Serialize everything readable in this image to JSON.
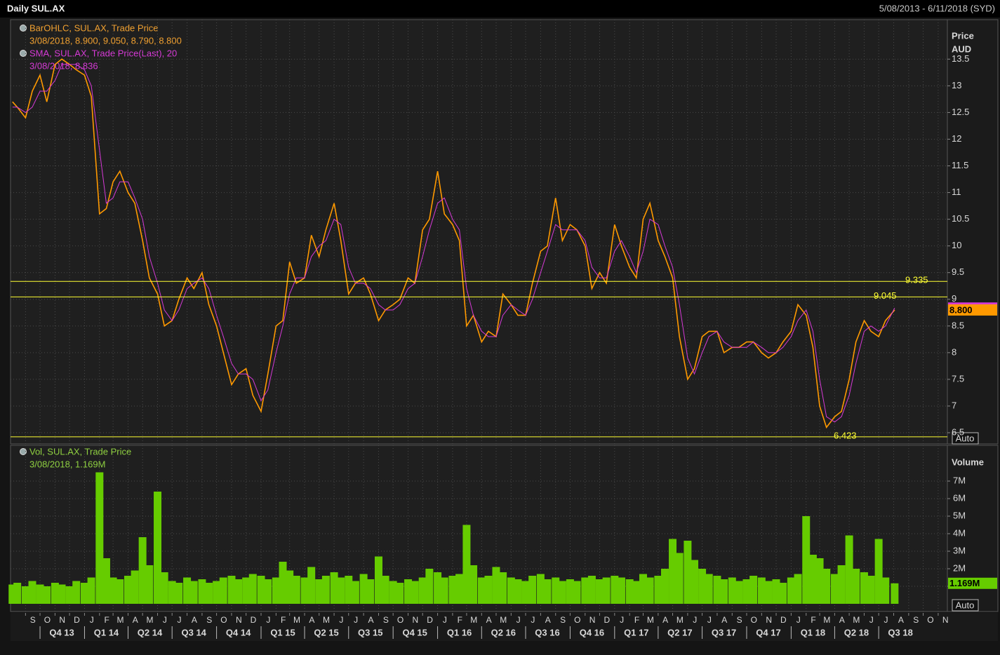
{
  "header": {
    "title": "Daily SUL.AX",
    "date_range": "5/08/2013 - 6/11/2018 (SYD)"
  },
  "chart_data": [
    {
      "type": "line",
      "y_axis_title": "Price",
      "y_axis_unit": "AUD",
      "scale_button": "Auto",
      "x": [
        "2013-08-05",
        "2013-08-15",
        "2013-09-01",
        "2013-09-15",
        "2013-10-01",
        "2013-10-15",
        "2013-11-01",
        "2013-11-15",
        "2013-12-01",
        "2013-12-15",
        "2014-01-01",
        "2014-01-15",
        "2014-02-01",
        "2014-02-15",
        "2014-03-01",
        "2014-03-15",
        "2014-04-01",
        "2014-04-15",
        "2014-05-01",
        "2014-05-15",
        "2014-06-01",
        "2014-06-15",
        "2014-07-01",
        "2014-07-15",
        "2014-08-01",
        "2014-08-15",
        "2014-09-01",
        "2014-09-15",
        "2014-10-01",
        "2014-10-15",
        "2014-11-01",
        "2014-11-15",
        "2014-12-01",
        "2014-12-15",
        "2015-01-01",
        "2015-01-15",
        "2015-02-01",
        "2015-02-15",
        "2015-03-01",
        "2015-03-15",
        "2015-04-01",
        "2015-04-15",
        "2015-05-01",
        "2015-05-15",
        "2015-06-01",
        "2015-06-15",
        "2015-07-01",
        "2015-07-15",
        "2015-08-01",
        "2015-08-15",
        "2015-09-01",
        "2015-09-15",
        "2015-10-01",
        "2015-10-15",
        "2015-11-01",
        "2015-11-15",
        "2015-12-01",
        "2015-12-15",
        "2016-01-01",
        "2016-01-15",
        "2016-02-01",
        "2016-02-15",
        "2016-03-01",
        "2016-03-15",
        "2016-04-01",
        "2016-04-15",
        "2016-05-01",
        "2016-05-15",
        "2016-06-01",
        "2016-06-15",
        "2016-07-01",
        "2016-07-15",
        "2016-08-01",
        "2016-08-15",
        "2016-09-01",
        "2016-09-15",
        "2016-10-01",
        "2016-10-15",
        "2016-11-01",
        "2016-11-15",
        "2016-12-01",
        "2016-12-15",
        "2017-01-01",
        "2017-01-15",
        "2017-02-01",
        "2017-02-15",
        "2017-03-01",
        "2017-03-15",
        "2017-04-01",
        "2017-04-15",
        "2017-05-01",
        "2017-05-15",
        "2017-06-01",
        "2017-06-15",
        "2017-07-01",
        "2017-07-15",
        "2017-08-01",
        "2017-08-15",
        "2017-09-01",
        "2017-09-15",
        "2017-10-01",
        "2017-10-15",
        "2017-11-01",
        "2017-11-15",
        "2017-12-01",
        "2017-12-15",
        "2018-01-01",
        "2018-01-15",
        "2018-02-01",
        "2018-02-15",
        "2018-03-01",
        "2018-03-15",
        "2018-04-01",
        "2018-04-15",
        "2018-05-01",
        "2018-05-15",
        "2018-06-01",
        "2018-06-15",
        "2018-07-01",
        "2018-07-15",
        "2018-08-03"
      ],
      "xlim": [
        "2013-08-01",
        "2018-11-20"
      ],
      "ylim": [
        6.29,
        14.24
      ],
      "yticks": [
        6.5,
        7,
        7.5,
        8,
        8.5,
        9,
        9.5,
        10,
        10.5,
        11,
        11.5,
        12,
        12.5,
        13,
        13.5
      ],
      "grid": true,
      "hlines": [
        9.335,
        9.045,
        6.423
      ],
      "hline_color": "#ffff33",
      "series": [
        {
          "name": "BarOHLC, SUL.AX, Trade Price",
          "detail": "3/08/2018, 8.900, 9.050, 8.790, 8.800",
          "color": "#ff9900",
          "tag": {
            "value": 8.8,
            "label": "8.800"
          },
          "values": [
            12.7,
            12.6,
            12.4,
            12.9,
            13.2,
            12.7,
            13.4,
            13.5,
            13.4,
            13.3,
            13.2,
            12.8,
            10.6,
            10.7,
            11.2,
            11.4,
            11.0,
            10.8,
            10.1,
            9.4,
            9.1,
            8.5,
            8.6,
            9.0,
            9.4,
            9.2,
            9.5,
            8.9,
            8.5,
            8.0,
            7.4,
            7.6,
            7.7,
            7.2,
            6.9,
            7.6,
            8.5,
            8.6,
            9.7,
            9.3,
            9.4,
            10.2,
            9.8,
            10.3,
            10.8,
            10.1,
            9.1,
            9.3,
            9.4,
            9.1,
            8.6,
            8.8,
            8.9,
            9.0,
            9.4,
            9.3,
            10.3,
            10.5,
            11.4,
            10.6,
            10.4,
            10.1,
            8.5,
            8.7,
            8.2,
            8.4,
            8.3,
            9.1,
            8.9,
            8.7,
            8.7,
            9.3,
            9.9,
            10.0,
            10.9,
            10.1,
            10.4,
            10.3,
            10.0,
            9.2,
            9.5,
            9.3,
            10.4,
            10.0,
            9.6,
            9.4,
            10.5,
            10.8,
            10.1,
            9.8,
            9.4,
            8.3,
            7.5,
            7.7,
            8.3,
            8.4,
            8.4,
            8.0,
            8.1,
            8.1,
            8.2,
            8.2,
            8.0,
            7.9,
            8.0,
            8.2,
            8.4,
            8.9,
            8.7,
            8.1,
            7.0,
            6.6,
            6.8,
            6.9,
            7.5,
            8.2,
            8.6,
            8.4,
            8.3,
            8.6,
            8.8
          ]
        },
        {
          "name": "SMA, SUL.AX, Trade Price(Last),  20",
          "detail": "3/08/2018, 8.836",
          "color": "#d63ad6",
          "tag": 8.836,
          "values": [
            12.6,
            12.6,
            12.5,
            12.6,
            12.9,
            12.9,
            13.1,
            13.4,
            13.4,
            13.4,
            13.3,
            13.0,
            11.8,
            10.8,
            10.9,
            11.2,
            11.2,
            10.9,
            10.5,
            9.8,
            9.3,
            8.8,
            8.6,
            8.8,
            9.2,
            9.3,
            9.4,
            9.2,
            8.7,
            8.3,
            7.8,
            7.6,
            7.6,
            7.5,
            7.1,
            7.3,
            8.0,
            8.5,
            9.1,
            9.4,
            9.4,
            9.8,
            10.0,
            10.1,
            10.5,
            10.4,
            9.6,
            9.3,
            9.3,
            9.2,
            8.9,
            8.8,
            8.8,
            8.9,
            9.2,
            9.3,
            9.8,
            10.3,
            10.8,
            10.9,
            10.5,
            10.3,
            9.2,
            8.7,
            8.4,
            8.3,
            8.3,
            8.7,
            8.9,
            8.8,
            8.7,
            9.0,
            9.5,
            9.9,
            10.4,
            10.3,
            10.3,
            10.3,
            10.1,
            9.6,
            9.4,
            9.4,
            9.9,
            10.1,
            9.8,
            9.5,
            9.9,
            10.5,
            10.4,
            10.0,
            9.6,
            8.9,
            7.9,
            7.6,
            8.0,
            8.3,
            8.4,
            8.2,
            8.1,
            8.1,
            8.1,
            8.2,
            8.1,
            8.0,
            8.0,
            8.1,
            8.3,
            8.6,
            8.8,
            8.4,
            7.5,
            6.8,
            6.7,
            6.8,
            7.2,
            7.8,
            8.4,
            8.5,
            8.4,
            8.5,
            8.836
          ]
        }
      ]
    },
    {
      "type": "bar",
      "y_axis_title": "Volume",
      "scale_button": "Auto",
      "ylim": [
        -440000,
        9040000
      ],
      "yticks": [
        {
          "value": 1000000,
          "label": "1M"
        },
        {
          "value": 2000000,
          "label": "2M"
        },
        {
          "value": 3000000,
          "label": "3M"
        },
        {
          "value": 4000000,
          "label": "4M"
        },
        {
          "value": 5000000,
          "label": "5M"
        },
        {
          "value": 6000000,
          "label": "6M"
        },
        {
          "value": 7000000,
          "label": "7M"
        }
      ],
      "grid": true,
      "xticks": [
        {
          "value": "2013-09-01",
          "label": "S"
        },
        {
          "value": "2013-10-01",
          "label": "O"
        },
        {
          "value": "2013-11-01",
          "label": "N"
        },
        {
          "value": "2013-12-01",
          "label": "D"
        },
        {
          "value": "2014-01-01",
          "label": "J"
        },
        {
          "value": "2014-02-01",
          "label": "F"
        },
        {
          "value": "2014-03-01",
          "label": "M"
        },
        {
          "value": "2014-04-01",
          "label": "A"
        },
        {
          "value": "2014-05-01",
          "label": "M"
        },
        {
          "value": "2014-06-01",
          "label": "J"
        },
        {
          "value": "2014-07-01",
          "label": "J"
        },
        {
          "value": "2014-08-01",
          "label": "A"
        },
        {
          "value": "2014-09-01",
          "label": "S"
        },
        {
          "value": "2014-10-01",
          "label": "O"
        },
        {
          "value": "2014-11-01",
          "label": "N"
        },
        {
          "value": "2014-12-01",
          "label": "D"
        },
        {
          "value": "2015-01-01",
          "label": "J"
        },
        {
          "value": "2015-02-01",
          "label": "F"
        },
        {
          "value": "2015-03-01",
          "label": "M"
        },
        {
          "value": "2015-04-01",
          "label": "A"
        },
        {
          "value": "2015-05-01",
          "label": "M"
        },
        {
          "value": "2015-06-01",
          "label": "J"
        },
        {
          "value": "2015-07-01",
          "label": "J"
        },
        {
          "value": "2015-08-01",
          "label": "A"
        },
        {
          "value": "2015-09-01",
          "label": "S"
        },
        {
          "value": "2015-10-01",
          "label": "O"
        },
        {
          "value": "2015-11-01",
          "label": "N"
        },
        {
          "value": "2015-12-01",
          "label": "D"
        },
        {
          "value": "2016-01-01",
          "label": "J"
        },
        {
          "value": "2016-02-01",
          "label": "F"
        },
        {
          "value": "2016-03-01",
          "label": "M"
        },
        {
          "value": "2016-04-01",
          "label": "A"
        },
        {
          "value": "2016-05-01",
          "label": "M"
        },
        {
          "value": "2016-06-01",
          "label": "J"
        },
        {
          "value": "2016-07-01",
          "label": "J"
        },
        {
          "value": "2016-08-01",
          "label": "A"
        },
        {
          "value": "2016-09-01",
          "label": "S"
        },
        {
          "value": "2016-10-01",
          "label": "O"
        },
        {
          "value": "2016-11-01",
          "label": "N"
        },
        {
          "value": "2016-12-01",
          "label": "D"
        },
        {
          "value": "2017-01-01",
          "label": "J"
        },
        {
          "value": "2017-02-01",
          "label": "F"
        },
        {
          "value": "2017-03-01",
          "label": "M"
        },
        {
          "value": "2017-04-01",
          "label": "A"
        },
        {
          "value": "2017-05-01",
          "label": "M"
        },
        {
          "value": "2017-06-01",
          "label": "J"
        },
        {
          "value": "2017-07-01",
          "label": "J"
        },
        {
          "value": "2017-08-01",
          "label": "A"
        },
        {
          "value": "2017-09-01",
          "label": "S"
        },
        {
          "value": "2017-10-01",
          "label": "O"
        },
        {
          "value": "2017-11-01",
          "label": "N"
        },
        {
          "value": "2017-12-01",
          "label": "D"
        },
        {
          "value": "2018-01-01",
          "label": "J"
        },
        {
          "value": "2018-02-01",
          "label": "F"
        },
        {
          "value": "2018-03-01",
          "label": "M"
        },
        {
          "value": "2018-04-01",
          "label": "A"
        },
        {
          "value": "2018-05-01",
          "label": "M"
        },
        {
          "value": "2018-06-01",
          "label": "J"
        },
        {
          "value": "2018-07-01",
          "label": "J"
        },
        {
          "value": "2018-08-01",
          "label": "A"
        },
        {
          "value": "2018-09-01",
          "label": "S"
        },
        {
          "value": "2018-10-01",
          "label": "O"
        },
        {
          "value": "2018-11-01",
          "label": "N"
        }
      ],
      "quarters": [
        {
          "value": "2013-10-01",
          "label": "Q4 13"
        },
        {
          "value": "2014-01-01",
          "label": "Q1 14"
        },
        {
          "value": "2014-04-01",
          "label": "Q2 14"
        },
        {
          "value": "2014-07-01",
          "label": "Q3 14"
        },
        {
          "value": "2014-10-01",
          "label": "Q4 14"
        },
        {
          "value": "2015-01-01",
          "label": "Q1 15"
        },
        {
          "value": "2015-04-01",
          "label": "Q2 15"
        },
        {
          "value": "2015-07-01",
          "label": "Q3 15"
        },
        {
          "value": "2015-10-01",
          "label": "Q4 15"
        },
        {
          "value": "2016-01-01",
          "label": "Q1 16"
        },
        {
          "value": "2016-04-01",
          "label": "Q2 16"
        },
        {
          "value": "2016-07-01",
          "label": "Q3 16"
        },
        {
          "value": "2016-10-01",
          "label": "Q4 16"
        },
        {
          "value": "2017-01-01",
          "label": "Q1 17"
        },
        {
          "value": "2017-04-01",
          "label": "Q2 17"
        },
        {
          "value": "2017-07-01",
          "label": "Q3 17"
        },
        {
          "value": "2017-10-01",
          "label": "Q4 17"
        },
        {
          "value": "2018-01-01",
          "label": "Q1 18"
        },
        {
          "value": "2018-04-01",
          "label": "Q2 18"
        },
        {
          "value": "2018-07-01",
          "label": "Q3 18"
        }
      ],
      "series": [
        {
          "name": "Vol, SUL.AX, Trade Price",
          "detail": "3/08/2018, 1.169M",
          "color": "#66cc00",
          "tag": {
            "value": 1169000,
            "label": "1.169M"
          },
          "values": [
            1100000,
            1200000,
            1000000,
            1300000,
            1100000,
            1000000,
            1200000,
            1100000,
            1000000,
            1300000,
            1200000,
            1500000,
            7500000,
            2600000,
            1500000,
            1400000,
            1600000,
            1900000,
            3800000,
            2200000,
            6400000,
            1800000,
            1300000,
            1200000,
            1500000,
            1300000,
            1400000,
            1200000,
            1300000,
            1500000,
            1600000,
            1400000,
            1500000,
            1700000,
            1600000,
            1400000,
            1500000,
            2400000,
            1900000,
            1600000,
            1500000,
            2100000,
            1400000,
            1600000,
            1800000,
            1500000,
            1600000,
            1300000,
            1700000,
            1400000,
            2700000,
            1600000,
            1300000,
            1200000,
            1400000,
            1300000,
            1500000,
            2000000,
            1800000,
            1500000,
            1600000,
            1700000,
            4500000,
            2200000,
            1500000,
            1600000,
            2100000,
            1800000,
            1500000,
            1400000,
            1300000,
            1600000,
            1700000,
            1400000,
            1500000,
            1300000,
            1400000,
            1300000,
            1500000,
            1600000,
            1400000,
            1500000,
            1600000,
            1500000,
            1400000,
            1300000,
            1700000,
            1500000,
            1600000,
            2000000,
            3700000,
            2900000,
            3600000,
            2500000,
            2000000,
            1700000,
            1600000,
            1400000,
            1500000,
            1300000,
            1400000,
            1600000,
            1500000,
            1300000,
            1400000,
            1200000,
            1500000,
            1700000,
            5000000,
            2800000,
            2600000,
            2000000,
            1700000,
            2200000,
            3900000,
            2000000,
            1800000,
            1600000,
            3700000,
            1500000,
            1169000
          ]
        }
      ]
    }
  ]
}
